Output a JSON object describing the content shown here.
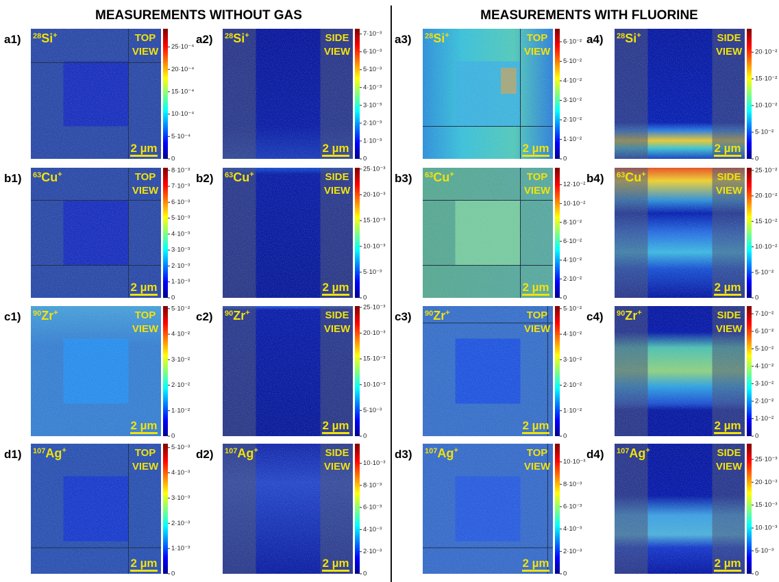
{
  "headers": [
    "MEASUREMENTS WITHOUT GAS",
    "MEASUREMENTS WITH FLUORINE"
  ],
  "panels": [
    {
      "label": "a1)",
      "mass": "28",
      "element": "Si",
      "charge": "+",
      "view": [
        "TOP",
        "VIEW"
      ],
      "scale": "2 µm",
      "ticks": [
        "0",
        "5·10⁻⁴",
        "10·10⁻⁴",
        "15·10⁻⁴",
        "20·10⁻⁴",
        "25·10⁻⁴"
      ]
    },
    {
      "label": "a2)",
      "mass": "28",
      "element": "Si",
      "charge": "+",
      "view": [
        "SIDE",
        "VIEW"
      ],
      "scale": "2 µm",
      "ticks": [
        "0",
        "1·10⁻³",
        "2·10⁻³",
        "3·10⁻³",
        "4·10⁻³",
        "5·10⁻³",
        "6·10⁻³",
        "7·10⁻³"
      ]
    },
    {
      "label": "a3)",
      "mass": "28",
      "element": "Si",
      "charge": "+",
      "view": [
        "TOP",
        "VIEW"
      ],
      "scale": "2 µm",
      "ticks": [
        "0",
        "1·10⁻²",
        "2·10⁻²",
        "3·10⁻²",
        "4·10⁻²",
        "5·10⁻²",
        "6·10⁻²"
      ]
    },
    {
      "label": "a4)",
      "mass": "28",
      "element": "Si",
      "charge": "+",
      "view": [
        "SIDE",
        "VIEW"
      ],
      "scale": "2 µm",
      "ticks": [
        "0",
        "5·10⁻²",
        "10·10⁻²",
        "15·10⁻²",
        "20·10⁻²"
      ]
    },
    {
      "label": "b1)",
      "mass": "63",
      "element": "Cu",
      "charge": "+",
      "view": [
        "TOP",
        "VIEW"
      ],
      "scale": "2 µm",
      "ticks": [
        "0",
        "1·10⁻³",
        "2·10⁻³",
        "3·10⁻³",
        "4·10⁻³",
        "5·10⁻³",
        "6·10⁻³",
        "7·10⁻³",
        "8·10⁻³"
      ]
    },
    {
      "label": "b2)",
      "mass": "63",
      "element": "Cu",
      "charge": "+",
      "view": [
        "SIDE",
        "VIEW"
      ],
      "scale": "2 µm",
      "ticks": [
        "0",
        "5·10⁻³",
        "10·10⁻³",
        "15·10⁻³",
        "20·10⁻³",
        "25·10⁻³"
      ]
    },
    {
      "label": "b3)",
      "mass": "63",
      "element": "Cu",
      "charge": "+",
      "view": [
        "TOP",
        "VIEW"
      ],
      "scale": "2 µm",
      "ticks": [
        "0",
        "2·10⁻²",
        "4·10⁻²",
        "6·10⁻²",
        "8·10⁻²",
        "10·10⁻²",
        "12·10⁻²"
      ]
    },
    {
      "label": "b4)",
      "mass": "63",
      "element": "Cu",
      "charge": "+",
      "view": [
        "SIDE",
        "VIEW"
      ],
      "scale": "2 µm",
      "ticks": [
        "0",
        "5·10⁻²",
        "10·10⁻²",
        "15·10⁻²",
        "20·10⁻²",
        "25·10⁻²"
      ]
    },
    {
      "label": "c1)",
      "mass": "90",
      "element": "Zr",
      "charge": "+",
      "view": [
        "TOP",
        "VIEW"
      ],
      "scale": "2 µm",
      "ticks": [
        "0",
        "1·10⁻²",
        "2·10⁻²",
        "3·10⁻²",
        "4·10⁻²",
        "5·10⁻²"
      ]
    },
    {
      "label": "c2)",
      "mass": "90",
      "element": "Zr",
      "charge": "+",
      "view": [
        "SIDE",
        "VIEW"
      ],
      "scale": "2 µm",
      "ticks": [
        "0",
        "5·10⁻³",
        "10·10⁻³",
        "15·10⁻³",
        "20·10⁻³",
        "25·10⁻³"
      ]
    },
    {
      "label": "c3)",
      "mass": "90",
      "element": "Zr",
      "charge": "+",
      "view": [
        "TOP",
        "VIEW"
      ],
      "scale": "2 µm",
      "ticks": [
        "0",
        "1·10⁻²",
        "2·10⁻²",
        "3·10⁻²",
        "4·10⁻²",
        "5·10⁻²"
      ]
    },
    {
      "label": "c4)",
      "mass": "90",
      "element": "Zr",
      "charge": "+",
      "view": [
        "SIDE",
        "VIEW"
      ],
      "scale": "2 µm",
      "ticks": [
        "0",
        "1·10⁻²",
        "2·10⁻²",
        "3·10⁻²",
        "4·10⁻²",
        "5·10⁻²",
        "6·10⁻²",
        "7·10⁻²"
      ]
    },
    {
      "label": "d1)",
      "mass": "107",
      "element": "Ag",
      "charge": "+",
      "view": [
        "TOP",
        "VIEW"
      ],
      "scale": "2 µm",
      "ticks": [
        "0",
        "1·10⁻³",
        "2·10⁻³",
        "3·10⁻³",
        "4·10⁻³",
        "5·10⁻³"
      ]
    },
    {
      "label": "d2)",
      "mass": "107",
      "element": "Ag",
      "charge": "+",
      "view": [
        "SIDE",
        "VIEW"
      ],
      "scale": "2 µm",
      "ticks": [
        "0",
        "2·10⁻³",
        "4·10⁻³",
        "6·10⁻³",
        "8·10⁻³",
        "10·10⁻³"
      ]
    },
    {
      "label": "d3)",
      "mass": "107",
      "element": "Ag",
      "charge": "+",
      "view": [
        "TOP",
        "VIEW"
      ],
      "scale": "2 µm",
      "ticks": [
        "0",
        "2·10⁻³",
        "4·10⁻³",
        "6·10⁻³",
        "8·10⁻³",
        "10·10⁻³"
      ]
    },
    {
      "label": "d4)",
      "mass": "107",
      "element": "Ag",
      "charge": "+",
      "view": [
        "SIDE",
        "VIEW"
      ],
      "scale": "2 µm",
      "ticks": [
        "0",
        "5·10⁻³",
        "10·10⁻³",
        "15·10⁻³",
        "20·10⁻³",
        "25·10⁻³"
      ]
    }
  ]
}
